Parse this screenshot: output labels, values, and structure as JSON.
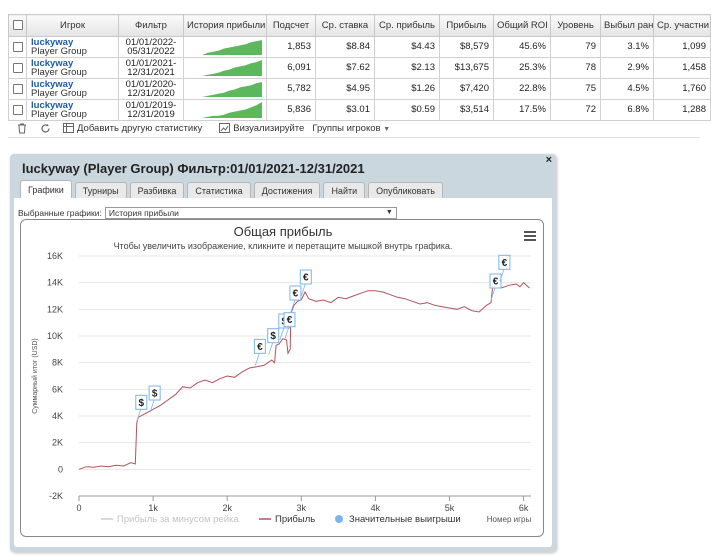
{
  "table": {
    "headers": [
      "Игрок",
      "Фильтр",
      "История прибыли",
      "Подсчет",
      "Ср. ставка",
      "Ср. прибыль",
      "Прибыль",
      "Общий ROI",
      "Уровень",
      "Выбыл ран",
      "Ср. участни"
    ],
    "rows": [
      {
        "player": "luckyway",
        "group": "Player Group",
        "filter_from": "01/01/2022-",
        "filter_to": "05/31/2022",
        "count": "1,853",
        "avg_stake": "$8.84",
        "avg_profit": "$4.43",
        "profit": "$8,579",
        "roi": "45.6%",
        "level": "79",
        "early": "3.1%",
        "avg_entrants": "1,099"
      },
      {
        "player": "luckyway",
        "group": "Player Group",
        "filter_from": "01/01/2021-",
        "filter_to": "12/31/2021",
        "count": "6,091",
        "avg_stake": "$7.62",
        "avg_profit": "$2.13",
        "profit": "$13,675",
        "roi": "25.3%",
        "level": "78",
        "early": "2.9%",
        "avg_entrants": "1,458"
      },
      {
        "player": "luckyway",
        "group": "Player Group",
        "filter_from": "01/01/2020-",
        "filter_to": "12/31/2020",
        "count": "5,782",
        "avg_stake": "$4.95",
        "avg_profit": "$1.26",
        "profit": "$7,420",
        "roi": "22.8%",
        "level": "75",
        "early": "4.5%",
        "avg_entrants": "1,760"
      },
      {
        "player": "luckyway",
        "group": "Player Group",
        "filter_from": "01/01/2019-",
        "filter_to": "12/31/2019",
        "count": "5,836",
        "avg_stake": "$3.01",
        "avg_profit": "$0.59",
        "profit": "$3,514",
        "roi": "17.5%",
        "level": "72",
        "early": "6.8%",
        "avg_entrants": "1,288"
      }
    ]
  },
  "toolbar": {
    "delete_icon": "trash-icon",
    "refresh_icon": "refresh-icon",
    "add_stats": "Добавить другую статистику",
    "visualize": "Визуализируйте",
    "groups": "Группы игроков"
  },
  "window": {
    "title": "luckyway (Player Group) Фильтр:01/01/2021-12/31/2021",
    "close": "×",
    "tabs": [
      "Графики",
      "Турниры",
      "Разбивка",
      "Статистика",
      "Достижения",
      "Найти",
      "Опубликовать"
    ],
    "active_tab": "Графики",
    "select_label": "Выбранные графики:",
    "select_value": "История прибыли"
  },
  "colors": {
    "profit_line": "#b5525a",
    "sparkline": "#5cb85c",
    "rake_line": "#cccccc",
    "big_win_marker": "#7cb5ec",
    "accent": "#1d5aa6"
  },
  "chart_data": {
    "type": "line",
    "title": "Общая прибыль",
    "subtitle": "Чтобы увеличить изображение, кликните и перетащите мышкой внутрь графика.",
    "ylabel": "Суммарный итог (USD)",
    "xlabel": "Номер игры",
    "x_ticks": [
      "0",
      "1k",
      "2k",
      "3k",
      "4k",
      "5k",
      "6k"
    ],
    "y_ticks": [
      "-2K",
      "0",
      "2K",
      "4K",
      "6K",
      "8K",
      "10K",
      "12K",
      "14K",
      "16K"
    ],
    "xlim": [
      0,
      6100
    ],
    "ylim": [
      -2000,
      16000
    ],
    "grid": true,
    "legend_position": "bottom",
    "series": [
      {
        "name": "Прибыль за минусом рейка",
        "color": "#cccccc",
        "values": []
      },
      {
        "name": "Прибыль",
        "color": "#b5525a",
        "points": [
          [
            0,
            0
          ],
          [
            100,
            200
          ],
          [
            200,
            150
          ],
          [
            300,
            250
          ],
          [
            400,
            200
          ],
          [
            500,
            300
          ],
          [
            600,
            250
          ],
          [
            700,
            500
          ],
          [
            760,
            400
          ],
          [
            780,
            3500
          ],
          [
            800,
            3900
          ],
          [
            900,
            4200
          ],
          [
            1000,
            4500
          ],
          [
            1100,
            4800
          ],
          [
            1200,
            5200
          ],
          [
            1300,
            5600
          ],
          [
            1400,
            6200
          ],
          [
            1500,
            6100
          ],
          [
            1600,
            6500
          ],
          [
            1700,
            6700
          ],
          [
            1800,
            6500
          ],
          [
            1900,
            6800
          ],
          [
            2000,
            7000
          ],
          [
            2100,
            6900
          ],
          [
            2200,
            7300
          ],
          [
            2300,
            7600
          ],
          [
            2400,
            7700
          ],
          [
            2500,
            7800
          ],
          [
            2600,
            8200
          ],
          [
            2640,
            8000
          ],
          [
            2660,
            9300
          ],
          [
            2700,
            9400
          ],
          [
            2750,
            9800
          ],
          [
            2800,
            9700
          ],
          [
            2820,
            8700
          ],
          [
            2850,
            9000
          ],
          [
            2860,
            11700
          ],
          [
            2900,
            12300
          ],
          [
            2950,
            12600
          ],
          [
            3000,
            12700
          ],
          [
            3050,
            13300
          ],
          [
            3100,
            12800
          ],
          [
            3200,
            12600
          ],
          [
            3300,
            12700
          ],
          [
            3400,
            12500
          ],
          [
            3500,
            12900
          ],
          [
            3600,
            12800
          ],
          [
            3700,
            13000
          ],
          [
            3800,
            13200
          ],
          [
            3900,
            13400
          ],
          [
            4000,
            13400
          ],
          [
            4100,
            13300
          ],
          [
            4200,
            13100
          ],
          [
            4300,
            12900
          ],
          [
            4400,
            12800
          ],
          [
            4500,
            12600
          ],
          [
            4600,
            12400
          ],
          [
            4700,
            12500
          ],
          [
            4800,
            12300
          ],
          [
            4900,
            12200
          ],
          [
            5000,
            12100
          ],
          [
            5100,
            12000
          ],
          [
            5200,
            12200
          ],
          [
            5300,
            11900
          ],
          [
            5400,
            11800
          ],
          [
            5500,
            12300
          ],
          [
            5560,
            12500
          ],
          [
            5580,
            13600
          ],
          [
            5620,
            13800
          ],
          [
            5680,
            14000
          ],
          [
            5700,
            13600
          ],
          [
            5800,
            13800
          ],
          [
            5900,
            13900
          ],
          [
            5950,
            13700
          ],
          [
            6000,
            14000
          ],
          [
            6080,
            13600
          ]
        ]
      },
      {
        "name": "Значительные выигрыши",
        "color": "#7cb5ec",
        "values": []
      }
    ],
    "big_wins": [
      {
        "x": 780,
        "y": 3600,
        "symbol": "$"
      },
      {
        "x": 960,
        "y": 4300,
        "symbol": "$"
      },
      {
        "x": 2380,
        "y": 7800,
        "symbol": "€"
      },
      {
        "x": 2560,
        "y": 8600,
        "symbol": "$"
      },
      {
        "x": 2710,
        "y": 9700,
        "symbol": "$"
      },
      {
        "x": 2780,
        "y": 9800,
        "symbol": "€"
      },
      {
        "x": 2860,
        "y": 11800,
        "symbol": "€"
      },
      {
        "x": 3000,
        "y": 13000,
        "symbol": "€"
      },
      {
        "x": 5560,
        "y": 12700,
        "symbol": "€"
      },
      {
        "x": 5680,
        "y": 14100,
        "symbol": "€"
      }
    ]
  }
}
